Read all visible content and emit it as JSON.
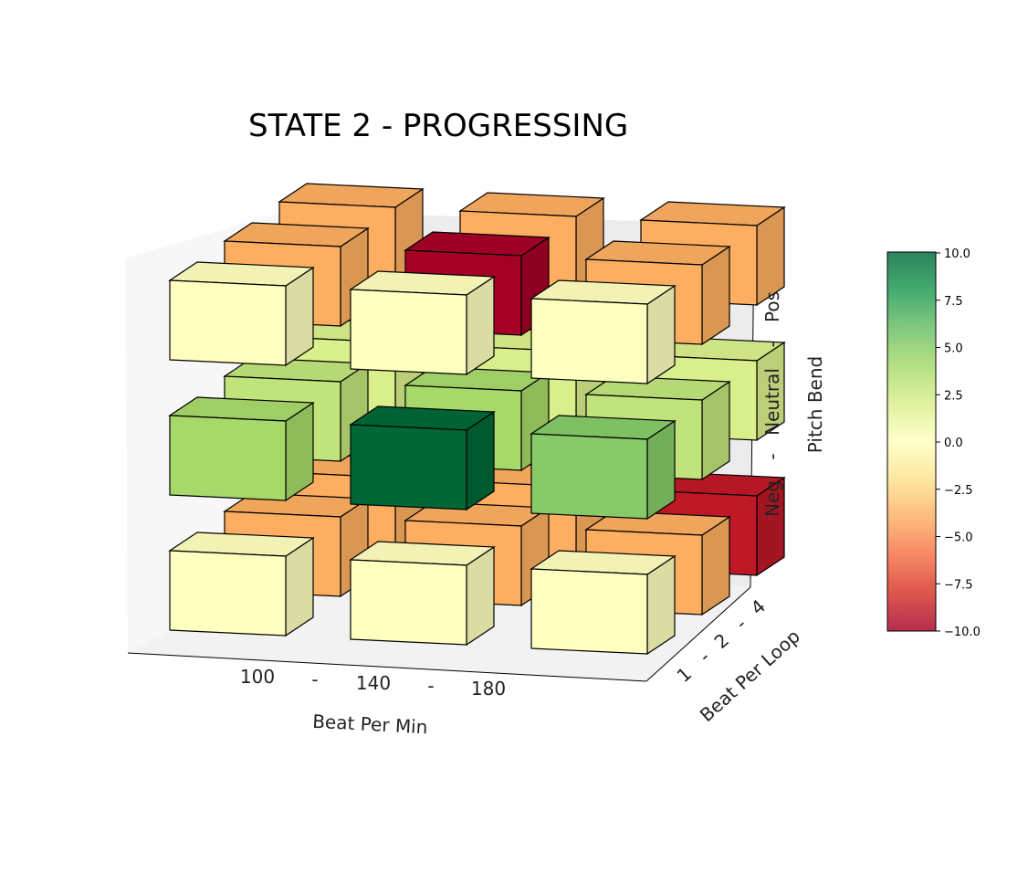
{
  "chart_data": {
    "type": "bar3d",
    "title": "STATE 2 - PROGRESSING",
    "xlabel": "Beat Per Min",
    "ylabel": "Beat Per Loop",
    "zlabel": "Pitch Bend",
    "x_ticks": [
      "100",
      "-",
      "140",
      "-",
      "180"
    ],
    "y_ticks": [
      "1",
      "-",
      "2",
      "-",
      "4"
    ],
    "z_ticks": [
      "Neg",
      "-",
      "Neutral",
      "-",
      "Pos"
    ],
    "x_categories": [
      "100",
      "140",
      "180"
    ],
    "y_categories": [
      "1",
      "2",
      "4"
    ],
    "z_categories": [
      "Neg",
      "Neutral",
      "Pos"
    ],
    "colorbar": {
      "colormap": "RdYlGn",
      "range": [
        -10,
        10
      ],
      "ticks": [
        "10.0",
        "7.5",
        "5.0",
        "2.5",
        "0.0",
        "−2.5",
        "−5.0",
        "−7.5",
        "−10.0"
      ]
    },
    "cells": [
      {
        "bpm": "100",
        "loop": "1",
        "pitch": "Neg",
        "value": 0
      },
      {
        "bpm": "140",
        "loop": "1",
        "pitch": "Neg",
        "value": 0
      },
      {
        "bpm": "180",
        "loop": "1",
        "pitch": "Neg",
        "value": 0
      },
      {
        "bpm": "100",
        "loop": "2",
        "pitch": "Neg",
        "value": -4
      },
      {
        "bpm": "140",
        "loop": "2",
        "pitch": "Neg",
        "value": -4
      },
      {
        "bpm": "180",
        "loop": "2",
        "pitch": "Neg",
        "value": -4
      },
      {
        "bpm": "100",
        "loop": "4",
        "pitch": "Neg",
        "value": -4
      },
      {
        "bpm": "140",
        "loop": "4",
        "pitch": "Neg",
        "value": -4
      },
      {
        "bpm": "180",
        "loop": "4",
        "pitch": "Neg",
        "value": -9
      },
      {
        "bpm": "100",
        "loop": "1",
        "pitch": "Neutral",
        "value": 4
      },
      {
        "bpm": "140",
        "loop": "1",
        "pitch": "Neutral",
        "value": 10
      },
      {
        "bpm": "180",
        "loop": "1",
        "pitch": "Neutral",
        "value": 5
      },
      {
        "bpm": "100",
        "loop": "2",
        "pitch": "Neutral",
        "value": 3
      },
      {
        "bpm": "140",
        "loop": "2",
        "pitch": "Neutral",
        "value": 4
      },
      {
        "bpm": "180",
        "loop": "2",
        "pitch": "Neutral",
        "value": 3
      },
      {
        "bpm": "100",
        "loop": "4",
        "pitch": "Neutral",
        "value": 2
      },
      {
        "bpm": "140",
        "loop": "4",
        "pitch": "Neutral",
        "value": 2
      },
      {
        "bpm": "180",
        "loop": "4",
        "pitch": "Neutral",
        "value": 2
      },
      {
        "bpm": "100",
        "loop": "1",
        "pitch": "Pos",
        "value": 0
      },
      {
        "bpm": "140",
        "loop": "1",
        "pitch": "Pos",
        "value": 0
      },
      {
        "bpm": "180",
        "loop": "1",
        "pitch": "Pos",
        "value": 0
      },
      {
        "bpm": "100",
        "loop": "2",
        "pitch": "Pos",
        "value": -4
      },
      {
        "bpm": "140",
        "loop": "2",
        "pitch": "Pos",
        "value": -10
      },
      {
        "bpm": "180",
        "loop": "2",
        "pitch": "Pos",
        "value": -4
      },
      {
        "bpm": "100",
        "loop": "4",
        "pitch": "Pos",
        "value": -4
      },
      {
        "bpm": "140",
        "loop": "4",
        "pitch": "Pos",
        "value": -4
      },
      {
        "bpm": "180",
        "loop": "4",
        "pitch": "Pos",
        "value": -4
      }
    ]
  }
}
